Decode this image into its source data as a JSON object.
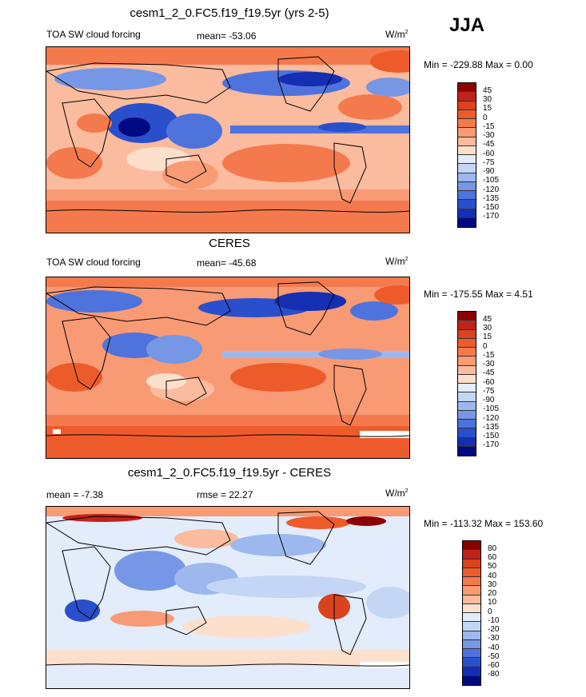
{
  "season": "JJA",
  "panels": [
    {
      "id": "model",
      "title": "cesm1_2_0.FC5.f19_f19.5yr (yrs 2-5)",
      "left_label": "TOA SW cloud forcing",
      "center_label": "mean= -53.06",
      "units": "W/m",
      "units_sup": "2",
      "minmax": "Min = -229.88 Max =   0.00",
      "colorbar_labels": [
        "45",
        "30",
        "15",
        "0",
        "-15",
        "-30",
        "-45",
        "-60",
        "-75",
        "-90",
        "-105",
        "-120",
        "-135",
        "-150",
        "-170"
      ],
      "colors": [
        "#8b0000",
        "#c0231a",
        "#d9431f",
        "#ee5b2a",
        "#f47a4e",
        "#f89a74",
        "#fbbb9e",
        "#fde0cc",
        "#e3ecfa",
        "#c4d6f5",
        "#9db8ef",
        "#7696e6",
        "#4e73dc",
        "#2a4fcc",
        "#142fb2",
        "#000a80"
      ]
    },
    {
      "id": "obs",
      "title": "CERES",
      "left_label": "TOA SW cloud forcing",
      "center_label": "mean= -45.68",
      "units": "W/m",
      "units_sup": "2",
      "minmax": "Min = -175.55 Max =   4.51",
      "colorbar_labels": [
        "45",
        "30",
        "15",
        "0",
        "-15",
        "-30",
        "-45",
        "-60",
        "-75",
        "-90",
        "-105",
        "-120",
        "-135",
        "-150",
        "-170"
      ],
      "colors": [
        "#8b0000",
        "#c0231a",
        "#d9431f",
        "#ee5b2a",
        "#f47a4e",
        "#f89a74",
        "#fbbb9e",
        "#fde0cc",
        "#e3ecfa",
        "#c4d6f5",
        "#9db8ef",
        "#7696e6",
        "#4e73dc",
        "#2a4fcc",
        "#142fb2",
        "#000a80"
      ]
    },
    {
      "id": "diff",
      "title": "cesm1_2_0.FC5.f19_f19.5yr - CERES",
      "left_label": "mean =  -7.38",
      "center_label": "rmse =  22.27",
      "units": "W/m",
      "units_sup": "2",
      "minmax": "Min = -113.32 Max = 153.60",
      "colorbar_labels": [
        "80",
        "60",
        "50",
        "40",
        "30",
        "20",
        "10",
        "0",
        "-10",
        "-20",
        "-30",
        "-40",
        "-50",
        "-60",
        "-80"
      ],
      "colors": [
        "#8b0000",
        "#c0231a",
        "#d9431f",
        "#ee5b2a",
        "#f47a4e",
        "#f89a74",
        "#fbbb9e",
        "#fde0cc",
        "#e3ecfa",
        "#c4d6f5",
        "#9db8ef",
        "#7696e6",
        "#4e73dc",
        "#2a4fcc",
        "#142fb2",
        "#000a80"
      ]
    }
  ]
}
